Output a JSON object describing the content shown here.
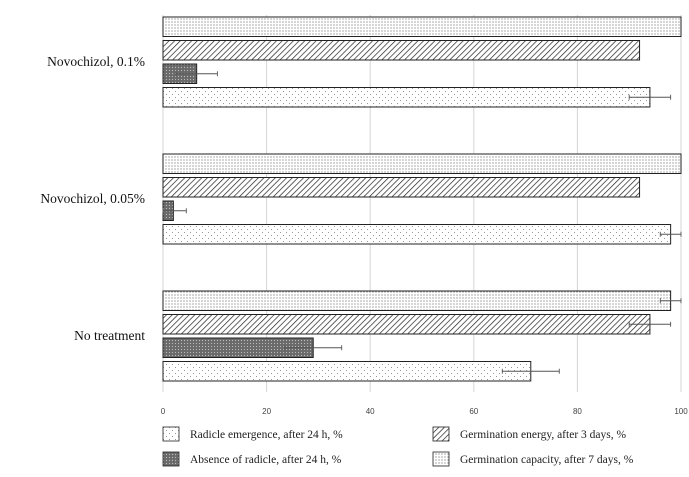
{
  "chart_data": {
    "type": "bar",
    "orientation": "horizontal",
    "categories": [
      "Novochizol, 0.1%",
      "Novochizol, 0.05%",
      "No treatment"
    ],
    "series": [
      {
        "name": "Germination capacity, after 7 days, %",
        "values": [
          100,
          100,
          98
        ],
        "errors": [
          0,
          0,
          2
        ],
        "pattern": "dense-dots",
        "color": "#ffffff"
      },
      {
        "name": "Germination energy, after 3 days, %",
        "values": [
          92,
          92,
          94
        ],
        "errors": [
          0,
          0,
          4
        ],
        "pattern": "diagonal-hatch",
        "color": "#ffffff"
      },
      {
        "name": "Absence of radicle, after 24 h, %",
        "values": [
          6.5,
          2,
          29
        ],
        "errors": [
          4,
          2.5,
          5.5
        ],
        "pattern": "dark-dots",
        "color": "#666666"
      },
      {
        "name": "Radicle emergence, after 24 h, %",
        "values": [
          94,
          98,
          71
        ],
        "errors": [
          4,
          2,
          5.5
        ],
        "pattern": "sparse-dots",
        "color": "#ffffff"
      }
    ],
    "xlim": [
      0,
      100
    ],
    "xticks": [
      0,
      20,
      40,
      60,
      80,
      100
    ],
    "grid": true,
    "legend_position": "bottom",
    "legend_order": [
      "Radicle emergence, after 24 h, %",
      "Germination energy, after 3 days, %",
      "Absence of radicle, after 24 h, %",
      "Germination capacity, after 7 days, %"
    ]
  }
}
